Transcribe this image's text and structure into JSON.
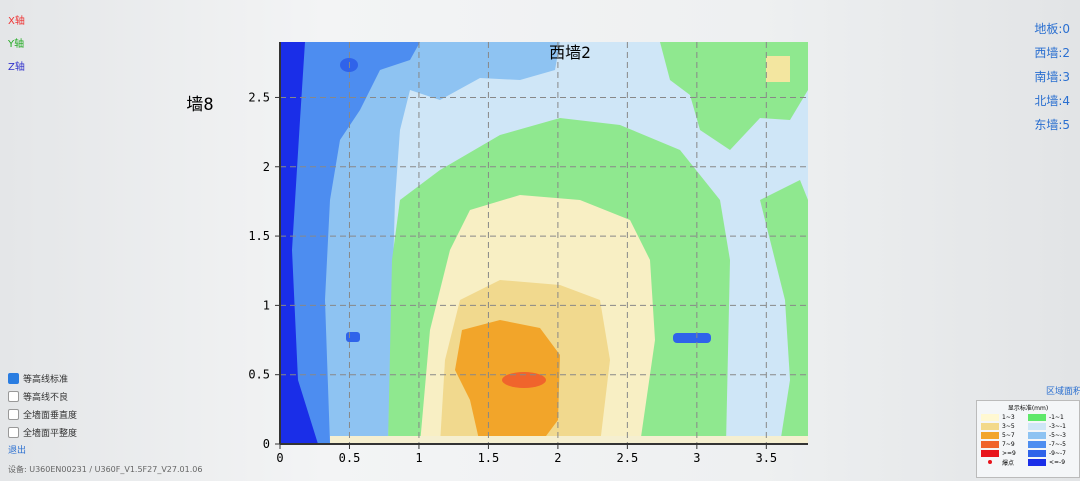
{
  "axis_labels": {
    "x": "X轴",
    "y": "Y轴",
    "z": "Z轴"
  },
  "options": [
    {
      "label": "等高线标准",
      "checked": true
    },
    {
      "label": "等高线不良",
      "checked": false
    },
    {
      "label": "全墙面垂直度",
      "checked": false
    },
    {
      "label": "全墙面平整度",
      "checked": false
    }
  ],
  "exit": "退出",
  "device": "设备: U360EN00231 / U360F_V1.5F27_V27.01.06",
  "walls": [
    "地板:0",
    "西墙:2",
    "南墙:3",
    "北墙:4",
    "东墙:5"
  ],
  "area_link": "区域面积",
  "plot": {
    "title": "西墙2",
    "side_label": "墙8",
    "xlim": [
      0,
      3.8
    ],
    "ylim": [
      0,
      2.9
    ],
    "xticks": [
      0,
      0.5,
      1,
      1.5,
      2,
      2.5,
      3,
      3.5
    ],
    "yticks": [
      0,
      0.5,
      1,
      1.5,
      2,
      2.5
    ]
  },
  "legend": {
    "title": "显示标准(mm)",
    "items": [
      {
        "label": "1~3",
        "color": "#fff8d2",
        "shape": "box"
      },
      {
        "label": "-1~1",
        "color": "#5ee86a",
        "shape": "box"
      },
      {
        "label": "3~5",
        "color": "#f3d98a",
        "shape": "box"
      },
      {
        "label": "-3~-1",
        "color": "#cfe6f7",
        "shape": "box"
      },
      {
        "label": "5~7",
        "color": "#f2a52a",
        "shape": "box"
      },
      {
        "label": "-5~-3",
        "color": "#8ec3f2",
        "shape": "box"
      },
      {
        "label": "7~9",
        "color": "#f0642c",
        "shape": "box"
      },
      {
        "label": "-7~-5",
        "color": "#4d8df0",
        "shape": "box"
      },
      {
        "label": ">=9",
        "color": "#e8141c",
        "shape": "box"
      },
      {
        "label": "-9~-7",
        "color": "#2f63ea",
        "shape": "box"
      },
      {
        "label": "爆点",
        "color": "#e8141c",
        "shape": "dot"
      },
      {
        "label": "<=-9",
        "color": "#1a2ee8",
        "shape": "box"
      }
    ]
  }
}
